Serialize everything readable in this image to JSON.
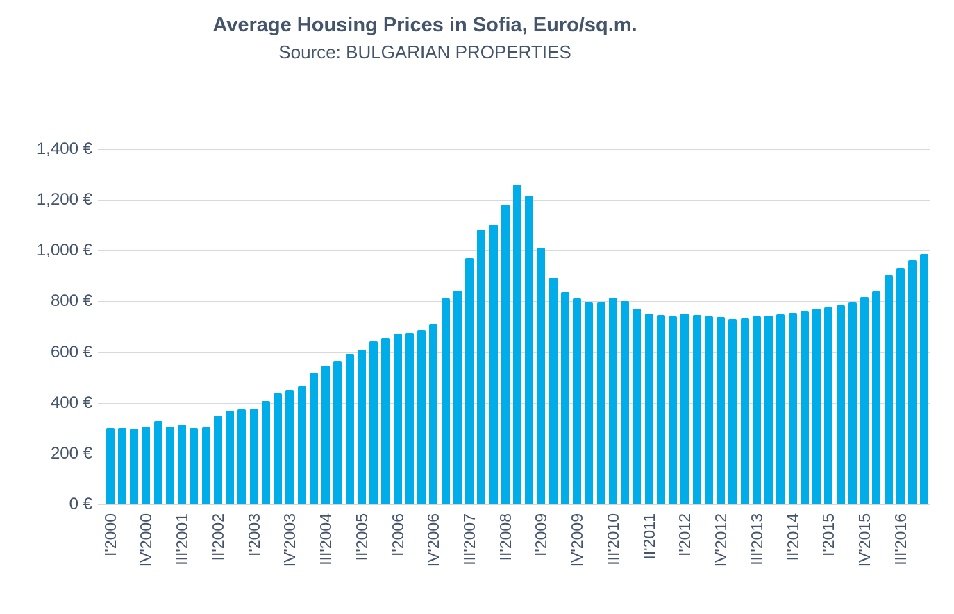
{
  "title": "Average Housing Prices in Sofia, Euro/sq.m.",
  "subtitle": "Source: BULGARIAN PROPERTIES",
  "colors": {
    "bar": "#00ADE8",
    "text": "#44546A",
    "gridline": "#D9D9DC",
    "axis_line": "#D6D6DA",
    "background": "#FFFFFF"
  },
  "chart_data": {
    "type": "bar",
    "title": "Average Housing Prices in Sofia, Euro/sq.m.",
    "subtitle": "Source: BULGARIAN PROPERTIES",
    "unit": "EUR per sq.m.",
    "grid": true,
    "ylim": [
      0,
      1400
    ],
    "y_tick_step": 200,
    "y_tick_labels": [
      "0 €",
      "200 €",
      "400 €",
      "600 €",
      "800 €",
      "1,000 €",
      "1,200 €",
      "1,400 €"
    ],
    "x_tick_step": 3,
    "x_tick_labels": [
      "I'2000",
      "IV'2000",
      "III'2001",
      "II'2002",
      "I'2003",
      "IV'2003",
      "III'2004",
      "II'2005",
      "I'2006",
      "IV'2006",
      "III'2007",
      "II'2008",
      "I'2009",
      "IV'2009",
      "III'2010",
      "II'2011",
      "I'2012",
      "IV'2012",
      "III'2013",
      "II'2014",
      "I'2015",
      "IV'2015",
      "III'2016"
    ],
    "categories": [
      "I'2000",
      "II'2000",
      "III'2000",
      "IV'2000",
      "I'2001",
      "II'2001",
      "III'2001",
      "IV'2001",
      "I'2002",
      "II'2002",
      "III'2002",
      "IV'2002",
      "I'2003",
      "II'2003",
      "III'2003",
      "IV'2003",
      "I'2004",
      "II'2004",
      "III'2004",
      "IV'2004",
      "I'2005",
      "II'2005",
      "III'2005",
      "IV'2005",
      "I'2006",
      "II'2006",
      "III'2006",
      "IV'2006",
      "I'2007",
      "II'2007",
      "III'2007",
      "IV'2007",
      "I'2008",
      "II'2008",
      "III'2008",
      "IV'2008",
      "I'2009",
      "II'2009",
      "III'2009",
      "IV'2009",
      "I'2010",
      "II'2010",
      "III'2010",
      "IV'2010",
      "I'2011",
      "II'2011",
      "III'2011",
      "IV'2011",
      "I'2012",
      "II'2012",
      "III'2012",
      "IV'2012",
      "I'2013",
      "II'2013",
      "III'2013",
      "IV'2013",
      "I'2014",
      "II'2014",
      "III'2014",
      "IV'2014",
      "I'2015",
      "II'2015",
      "III'2015",
      "IV'2015",
      "I'2016",
      "II'2016",
      "III'2016",
      "IV'2016",
      "I'2017"
    ],
    "values": [
      300,
      300,
      297,
      305,
      328,
      305,
      314,
      300,
      303,
      350,
      368,
      375,
      377,
      407,
      437,
      452,
      464,
      520,
      547,
      564,
      594,
      610,
      643,
      657,
      672,
      676,
      687,
      711,
      813,
      843,
      972,
      1082,
      1103,
      1180,
      1261,
      1216,
      1011,
      893,
      838,
      811,
      797,
      797,
      814,
      802,
      770,
      752,
      746,
      742,
      752,
      746,
      740,
      737,
      730,
      734,
      740,
      744,
      749,
      755,
      763,
      770,
      776,
      784,
      796,
      817,
      840,
      903,
      929,
      962,
      986
    ]
  }
}
